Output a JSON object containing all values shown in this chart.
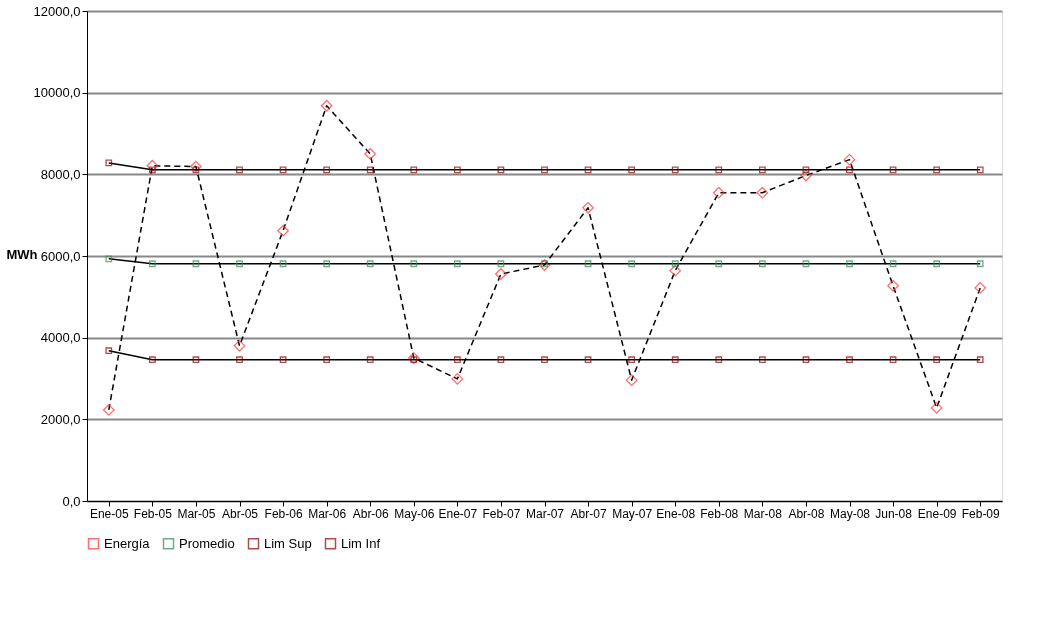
{
  "chart_data": {
    "type": "line",
    "ylabel": "MWh",
    "categories": [
      "Ene-05",
      "Feb-05",
      "Mar-05",
      "Abr-05",
      "Feb-06",
      "Mar-06",
      "Abr-06",
      "May-06",
      "Ene-07",
      "Feb-07",
      "Mar-07",
      "Abr-07",
      "May-07",
      "Ene-08",
      "Feb-08",
      "Mar-08",
      "Abr-08",
      "May-08",
      "Jun-08",
      "Ene-09",
      "Feb-09"
    ],
    "series": [
      {
        "name": "Energía",
        "color": "#ff3333",
        "marker": "diamond",
        "line_style": "dashed",
        "values": [
          2230,
          8210,
          8190,
          3800,
          6620,
          9680,
          8500,
          3500,
          2990,
          5560,
          5780,
          7180,
          2960,
          5640,
          7550,
          7550,
          7970,
          8360,
          5270,
          2280,
          5220
        ]
      },
      {
        "name": "Promedio",
        "color": "#2e8b57",
        "marker": "square",
        "line_style": "solid",
        "values": [
          5930,
          5810,
          5810,
          5810,
          5810,
          5810,
          5810,
          5810,
          5810,
          5810,
          5810,
          5810,
          5810,
          5810,
          5810,
          5810,
          5810,
          5810,
          5810,
          5810,
          5810
        ]
      },
      {
        "name": "Lim Sup",
        "color": "#8b0000",
        "marker": "square",
        "line_style": "solid",
        "values": [
          8280,
          8110,
          8110,
          8110,
          8110,
          8110,
          8110,
          8110,
          8110,
          8110,
          8110,
          8110,
          8110,
          8110,
          8110,
          8110,
          8110,
          8110,
          8110,
          8110,
          8110
        ]
      },
      {
        "name": "Lim Inf",
        "color": "#8b0000",
        "marker": "square",
        "line_style": "solid",
        "values": [
          3680,
          3460,
          3460,
          3460,
          3460,
          3460,
          3460,
          3460,
          3460,
          3460,
          3460,
          3460,
          3460,
          3460,
          3460,
          3460,
          3460,
          3460,
          3460,
          3460,
          3460
        ]
      }
    ],
    "ylim": [
      0,
      12000
    ],
    "yticks": [
      {
        "value": 0,
        "label": "0,0"
      },
      {
        "value": 2000,
        "label": "2000,0"
      },
      {
        "value": 4000,
        "label": "4000,0"
      },
      {
        "value": 6000,
        "label": "6000,0"
      },
      {
        "value": 8000,
        "label": "8000,0"
      },
      {
        "value": 10000,
        "label": "10000,0"
      },
      {
        "value": 12000,
        "label": "12000,0"
      }
    ],
    "grid": "y",
    "legend": "bottom"
  }
}
